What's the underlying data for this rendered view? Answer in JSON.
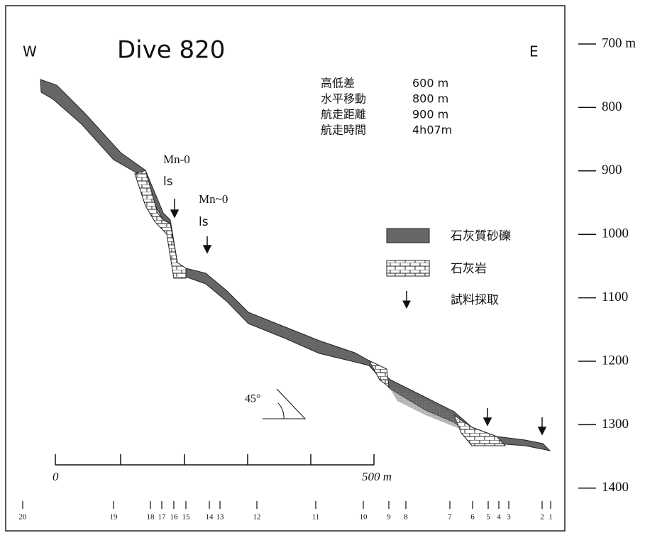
{
  "header": {
    "west": "W",
    "title": "Dive 820",
    "east": "E"
  },
  "depth_scale": [
    "700 m",
    "800",
    "900",
    "1000",
    "1100",
    "1200",
    "1300",
    "1400"
  ],
  "info": [
    [
      "高低差",
      "600 m"
    ],
    [
      "水平移動",
      "800 m"
    ],
    [
      "航走距離",
      "900 m"
    ],
    [
      "航走時間",
      "4h07m"
    ]
  ],
  "samples": [
    {
      "label": "Mn-0",
      "rock": "ls"
    },
    {
      "label": "Mn~0",
      "rock": "ls"
    }
  ],
  "legend": [
    "石灰質砂礫",
    "石灰岩",
    "試料採取"
  ],
  "angle": "45°",
  "scale_bar": [
    "0",
    "500 m"
  ],
  "stations": [
    "20",
    "19",
    "18",
    "17",
    "16",
    "15",
    "14",
    "13",
    "12",
    "11",
    "10",
    "9",
    "8",
    "7",
    "6",
    "5",
    "4",
    "3",
    "2",
    "1"
  ]
}
